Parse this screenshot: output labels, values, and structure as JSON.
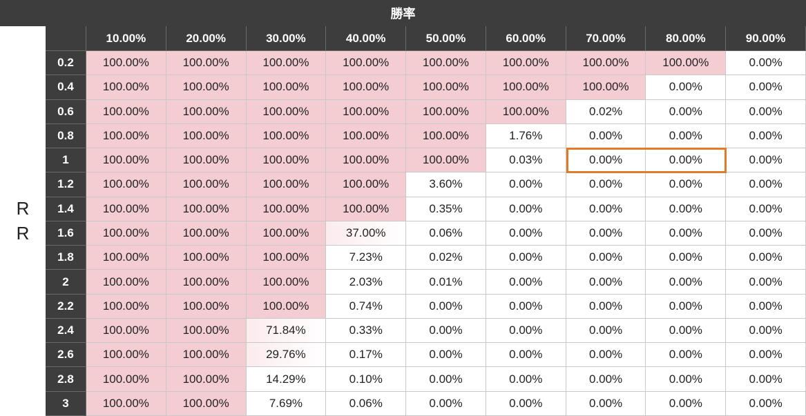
{
  "header": {
    "title": "勝率"
  },
  "row_axis": {
    "label_line1": "R",
    "label_line2": "R"
  },
  "colors": {
    "highlight_pink": "#f4cdd2",
    "faint_pink": "#fbecee",
    "header_bg": "#3d3d3d",
    "outline_orange": "#e07b2a"
  },
  "table": {
    "columns": [
      "10.00%",
      "20.00%",
      "30.00%",
      "40.00%",
      "50.00%",
      "60.00%",
      "70.00%",
      "80.00%",
      "90.00%"
    ],
    "rows": [
      {
        "label": "0.2",
        "values": [
          "100.00%",
          "100.00%",
          "100.00%",
          "100.00%",
          "100.00%",
          "100.00%",
          "100.00%",
          "100.00%",
          "0.00%"
        ]
      },
      {
        "label": "0.4",
        "values": [
          "100.00%",
          "100.00%",
          "100.00%",
          "100.00%",
          "100.00%",
          "100.00%",
          "100.00%",
          "0.00%",
          "0.00%"
        ]
      },
      {
        "label": "0.6",
        "values": [
          "100.00%",
          "100.00%",
          "100.00%",
          "100.00%",
          "100.00%",
          "100.00%",
          "0.02%",
          "0.00%",
          "0.00%"
        ]
      },
      {
        "label": "0.8",
        "values": [
          "100.00%",
          "100.00%",
          "100.00%",
          "100.00%",
          "100.00%",
          "1.76%",
          "0.00%",
          "0.00%",
          "0.00%"
        ]
      },
      {
        "label": "1",
        "values": [
          "100.00%",
          "100.00%",
          "100.00%",
          "100.00%",
          "100.00%",
          "0.03%",
          "0.00%",
          "0.00%",
          "0.00%"
        ]
      },
      {
        "label": "1.2",
        "values": [
          "100.00%",
          "100.00%",
          "100.00%",
          "100.00%",
          "3.60%",
          "0.00%",
          "0.00%",
          "0.00%",
          "0.00%"
        ]
      },
      {
        "label": "1.4",
        "values": [
          "100.00%",
          "100.00%",
          "100.00%",
          "100.00%",
          "0.35%",
          "0.00%",
          "0.00%",
          "0.00%",
          "0.00%"
        ]
      },
      {
        "label": "1.6",
        "values": [
          "100.00%",
          "100.00%",
          "100.00%",
          "37.00%",
          "0.06%",
          "0.00%",
          "0.00%",
          "0.00%",
          "0.00%"
        ]
      },
      {
        "label": "1.8",
        "values": [
          "100.00%",
          "100.00%",
          "100.00%",
          "7.23%",
          "0.02%",
          "0.00%",
          "0.00%",
          "0.00%",
          "0.00%"
        ]
      },
      {
        "label": "2",
        "values": [
          "100.00%",
          "100.00%",
          "100.00%",
          "2.03%",
          "0.01%",
          "0.00%",
          "0.00%",
          "0.00%",
          "0.00%"
        ]
      },
      {
        "label": "2.2",
        "values": [
          "100.00%",
          "100.00%",
          "100.00%",
          "0.74%",
          "0.00%",
          "0.00%",
          "0.00%",
          "0.00%",
          "0.00%"
        ]
      },
      {
        "label": "2.4",
        "values": [
          "100.00%",
          "100.00%",
          "71.84%",
          "0.33%",
          "0.00%",
          "0.00%",
          "0.00%",
          "0.00%",
          "0.00%"
        ]
      },
      {
        "label": "2.6",
        "values": [
          "100.00%",
          "100.00%",
          "29.76%",
          "0.17%",
          "0.00%",
          "0.00%",
          "0.00%",
          "0.00%",
          "0.00%"
        ]
      },
      {
        "label": "2.8",
        "values": [
          "100.00%",
          "100.00%",
          "14.29%",
          "0.10%",
          "0.00%",
          "0.00%",
          "0.00%",
          "0.00%",
          "0.00%"
        ]
      },
      {
        "label": "3",
        "values": [
          "100.00%",
          "100.00%",
          "7.69%",
          "0.06%",
          "0.00%",
          "0.00%",
          "0.00%",
          "0.00%",
          "0.00%"
        ]
      }
    ],
    "highlight": {
      "row_label": "1",
      "columns": [
        "70.00%",
        "80.00%"
      ]
    }
  }
}
